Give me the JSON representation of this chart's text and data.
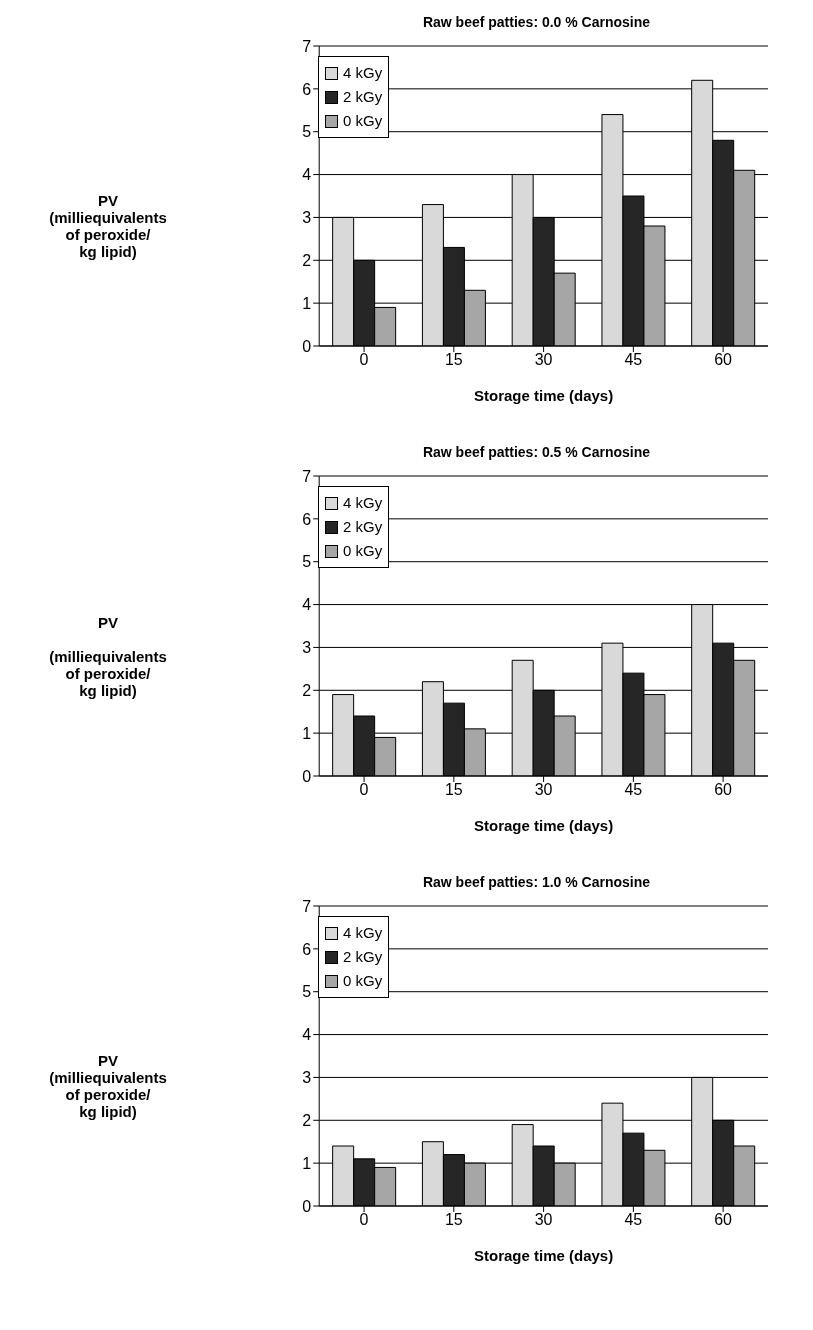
{
  "chart_data": [
    {
      "type": "bar",
      "title": "Raw beef patties: 0.0 % Carnosine",
      "xlabel": "Storage time (days)",
      "ylabel": "PV\n(milliequivalents\nof peroxide/\nkg lipid)",
      "categories": [
        "0",
        "15",
        "30",
        "45",
        "60"
      ],
      "ylim": [
        0,
        7
      ],
      "yticks": [
        0,
        1,
        2,
        3,
        4,
        5,
        6,
        7
      ],
      "grid": "y",
      "legend": "top left",
      "series": [
        {
          "name": "4 kGy",
          "color": "#d9d9d9",
          "values": [
            3.0,
            3.3,
            4.0,
            5.4,
            6.2
          ]
        },
        {
          "name": "2 kGy",
          "color": "#262626",
          "values": [
            2.0,
            2.3,
            3.0,
            3.5,
            4.8
          ]
        },
        {
          "name": "0 kGy",
          "color": "#a6a6a6",
          "values": [
            0.9,
            1.3,
            1.7,
            2.8,
            4.1
          ]
        }
      ]
    },
    {
      "type": "bar",
      "title": "Raw beef patties: 0.5 % Carnosine",
      "xlabel": "Storage time (days)",
      "ylabel": "PV\n\n(milliequivalents\nof peroxide/\nkg lipid)",
      "categories": [
        "0",
        "15",
        "30",
        "45",
        "60"
      ],
      "ylim": [
        0,
        7
      ],
      "yticks": [
        0,
        1,
        2,
        3,
        4,
        5,
        6,
        7
      ],
      "grid": "y",
      "legend": "top left",
      "series": [
        {
          "name": "4 kGy",
          "color": "#d9d9d9",
          "values": [
            1.9,
            2.2,
            2.7,
            3.1,
            4.0
          ]
        },
        {
          "name": "2 kGy",
          "color": "#262626",
          "values": [
            1.4,
            1.7,
            2.0,
            2.4,
            3.1
          ]
        },
        {
          "name": "0 kGy",
          "color": "#a6a6a6",
          "values": [
            0.9,
            1.1,
            1.4,
            1.9,
            2.7
          ]
        }
      ]
    },
    {
      "type": "bar",
      "title": "Raw beef patties: 1.0 % Carnosine",
      "xlabel": "Storage time (days)",
      "ylabel": "PV\n(milliequivalents\nof peroxide/\nkg lipid)",
      "categories": [
        "0",
        "15",
        "30",
        "45",
        "60"
      ],
      "ylim": [
        0,
        7
      ],
      "yticks": [
        0,
        1,
        2,
        3,
        4,
        5,
        6,
        7
      ],
      "grid": "y",
      "legend": "top left",
      "series": [
        {
          "name": "4 kGy",
          "color": "#d9d9d9",
          "values": [
            1.4,
            1.5,
            1.9,
            2.4,
            3.0
          ]
        },
        {
          "name": "2 kGy",
          "color": "#262626",
          "values": [
            1.1,
            1.2,
            1.4,
            1.7,
            2.0
          ]
        },
        {
          "name": "0 kGy",
          "color": "#a6a6a6",
          "values": [
            0.9,
            1.0,
            1.0,
            1.3,
            1.4
          ]
        }
      ]
    }
  ]
}
